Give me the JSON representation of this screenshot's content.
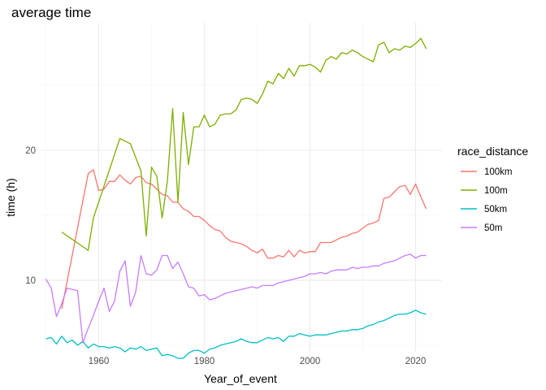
{
  "chart_data": {
    "type": "line",
    "title": "average time",
    "xlabel": "Year_of_event",
    "ylabel": "time (h)",
    "xlim": [
      1949,
      2025
    ],
    "ylim": [
      4.5,
      29.8
    ],
    "x_ticks": [
      1960,
      1980,
      2000,
      2020
    ],
    "y_ticks": [
      10,
      20
    ],
    "grid": true,
    "legend": {
      "title": "race_distance",
      "position": "right"
    },
    "series": [
      {
        "name": "100km",
        "color": "#F8766D",
        "x": [
          1953,
          1958,
          1959,
          1960,
          1961,
          1962,
          1963,
          1964,
          1965,
          1966,
          1967,
          1968,
          1969,
          1970,
          1971,
          1972,
          1973,
          1974,
          1975,
          1976,
          1977,
          1978,
          1979,
          1980,
          1981,
          1982,
          1983,
          1984,
          1985,
          1986,
          1987,
          1988,
          1989,
          1990,
          1991,
          1992,
          1993,
          1994,
          1995,
          1996,
          1997,
          1998,
          1999,
          2000,
          2001,
          2002,
          2003,
          2004,
          2005,
          2006,
          2007,
          2008,
          2009,
          2010,
          2011,
          2012,
          2013,
          2014,
          2015,
          2016,
          2017,
          2018,
          2019,
          2020,
          2021,
          2022
        ],
        "y": [
          7.8,
          18.2,
          18.5,
          16.9,
          17.0,
          17.6,
          17.6,
          18.1,
          17.7,
          17.4,
          17.9,
          18.0,
          17.5,
          17.4,
          17.0,
          16.6,
          16.5,
          16.0,
          16.0,
          15.5,
          15.3,
          14.9,
          14.9,
          14.6,
          14.2,
          13.9,
          13.8,
          13.3,
          13.0,
          12.9,
          12.8,
          12.6,
          12.3,
          12.1,
          12.4,
          11.7,
          11.7,
          11.9,
          11.8,
          12.3,
          11.8,
          12.3,
          12.1,
          12.2,
          12.2,
          12.9,
          12.9,
          12.9,
          13.1,
          13.3,
          13.4,
          13.6,
          13.7,
          14.0,
          14.3,
          14.4,
          14.6,
          16.3,
          16.4,
          16.8,
          17.2,
          17.3,
          16.6,
          17.4,
          16.4,
          15.5
        ]
      },
      {
        "name": "100m",
        "color": "#7CAE00",
        "x": [
          1953,
          1958,
          1959,
          1964,
          1966,
          1968,
          1969,
          1970,
          1971,
          1972,
          1973,
          1974,
          1975,
          1976,
          1977,
          1978,
          1979,
          1980,
          1981,
          1982,
          1983,
          1984,
          1985,
          1986,
          1987,
          1988,
          1989,
          1990,
          1991,
          1992,
          1993,
          1994,
          1995,
          1996,
          1997,
          1998,
          1999,
          2000,
          2001,
          2002,
          2003,
          2004,
          2005,
          2006,
          2007,
          2008,
          2009,
          2010,
          2011,
          2012,
          2013,
          2014,
          2015,
          2016,
          2017,
          2018,
          2019,
          2020,
          2021,
          2022
        ],
        "y": [
          13.7,
          12.3,
          14.8,
          20.9,
          20.5,
          18.4,
          13.4,
          18.7,
          18.0,
          14.8,
          17.6,
          23.2,
          16.0,
          22.9,
          18.9,
          21.8,
          21.8,
          22.7,
          21.8,
          22.0,
          22.7,
          22.8,
          22.8,
          23.1,
          23.9,
          24.0,
          23.9,
          23.6,
          24.3,
          25.3,
          25.1,
          25.9,
          25.5,
          26.3,
          25.7,
          26.5,
          26.5,
          26.6,
          26.4,
          26.0,
          26.9,
          27.2,
          27.0,
          27.5,
          27.4,
          27.7,
          27.5,
          27.2,
          27.0,
          26.8,
          28.1,
          28.3,
          27.5,
          27.8,
          27.7,
          28.0,
          27.9,
          28.2,
          28.6,
          27.8
        ]
      },
      {
        "name": "50km",
        "color": "#00BFC4",
        "x": [
          1950,
          1951,
          1952,
          1953,
          1954,
          1955,
          1956,
          1957,
          1958,
          1959,
          1960,
          1961,
          1962,
          1963,
          1964,
          1965,
          1966,
          1967,
          1968,
          1969,
          1970,
          1971,
          1972,
          1973,
          1974,
          1975,
          1976,
          1977,
          1978,
          1979,
          1980,
          1981,
          1982,
          1983,
          1984,
          1985,
          1986,
          1987,
          1988,
          1989,
          1990,
          1991,
          1992,
          1993,
          1994,
          1995,
          1996,
          1997,
          1998,
          1999,
          2000,
          2001,
          2002,
          2003,
          2004,
          2005,
          2006,
          2007,
          2008,
          2009,
          2010,
          2011,
          2012,
          2013,
          2014,
          2015,
          2016,
          2017,
          2018,
          2019,
          2020,
          2021,
          2022
        ],
        "y": [
          5.5,
          5.6,
          5.1,
          5.7,
          5.2,
          5.4,
          5.0,
          5.3,
          4.8,
          5.1,
          4.9,
          4.9,
          4.8,
          4.9,
          4.8,
          4.5,
          4.8,
          4.7,
          4.9,
          4.6,
          4.7,
          4.8,
          4.2,
          4.3,
          4.2,
          4.0,
          4.0,
          4.4,
          4.6,
          4.6,
          4.4,
          4.7,
          4.8,
          5.0,
          5.1,
          5.2,
          5.3,
          5.5,
          5.3,
          5.2,
          5.2,
          5.4,
          5.6,
          5.5,
          5.6,
          5.3,
          5.7,
          5.7,
          5.9,
          5.8,
          5.7,
          5.8,
          5.8,
          5.8,
          5.9,
          6.0,
          6.1,
          6.1,
          6.2,
          6.2,
          6.3,
          6.5,
          6.6,
          6.8,
          6.9,
          7.1,
          7.3,
          7.4,
          7.4,
          7.5,
          7.7,
          7.5,
          7.4
        ]
      },
      {
        "name": "50m",
        "color": "#C77CFF",
        "x": [
          1950,
          1951,
          1952,
          1953,
          1954,
          1955,
          1956,
          1957,
          1958,
          1959,
          1960,
          1961,
          1962,
          1963,
          1964,
          1965,
          1966,
          1967,
          1968,
          1969,
          1970,
          1971,
          1972,
          1973,
          1974,
          1975,
          1976,
          1977,
          1978,
          1979,
          1980,
          1981,
          1982,
          1983,
          1984,
          1985,
          1986,
          1987,
          1988,
          1989,
          1990,
          1991,
          1992,
          1993,
          1994,
          1995,
          1996,
          1997,
          1998,
          1999,
          2000,
          2001,
          2002,
          2003,
          2004,
          2005,
          2006,
          2007,
          2008,
          2009,
          2010,
          2011,
          2012,
          2013,
          2014,
          2015,
          2016,
          2017,
          2018,
          2019,
          2020,
          2021,
          2022
        ],
        "y": [
          10.1,
          9.4,
          7.2,
          8.2,
          9.4,
          9.3,
          9.2,
          5.2,
          6.3,
          7.3,
          8.4,
          9.4,
          7.6,
          8.4,
          10.7,
          11.5,
          8.0,
          9.1,
          11.9,
          10.5,
          10.4,
          10.8,
          11.9,
          11.9,
          10.9,
          11.4,
          10.5,
          9.5,
          9.4,
          8.8,
          8.9,
          8.5,
          8.6,
          8.8,
          9.0,
          9.1,
          9.2,
          9.3,
          9.4,
          9.5,
          9.4,
          9.6,
          9.6,
          9.6,
          9.8,
          9.9,
          10.0,
          10.1,
          10.2,
          10.3,
          10.5,
          10.5,
          10.6,
          10.5,
          10.7,
          10.8,
          10.8,
          10.8,
          11.0,
          10.9,
          11.0,
          11.0,
          11.1,
          11.1,
          11.3,
          11.4,
          11.5,
          11.7,
          11.9,
          12.0,
          11.7,
          11.9,
          11.9
        ]
      }
    ]
  }
}
